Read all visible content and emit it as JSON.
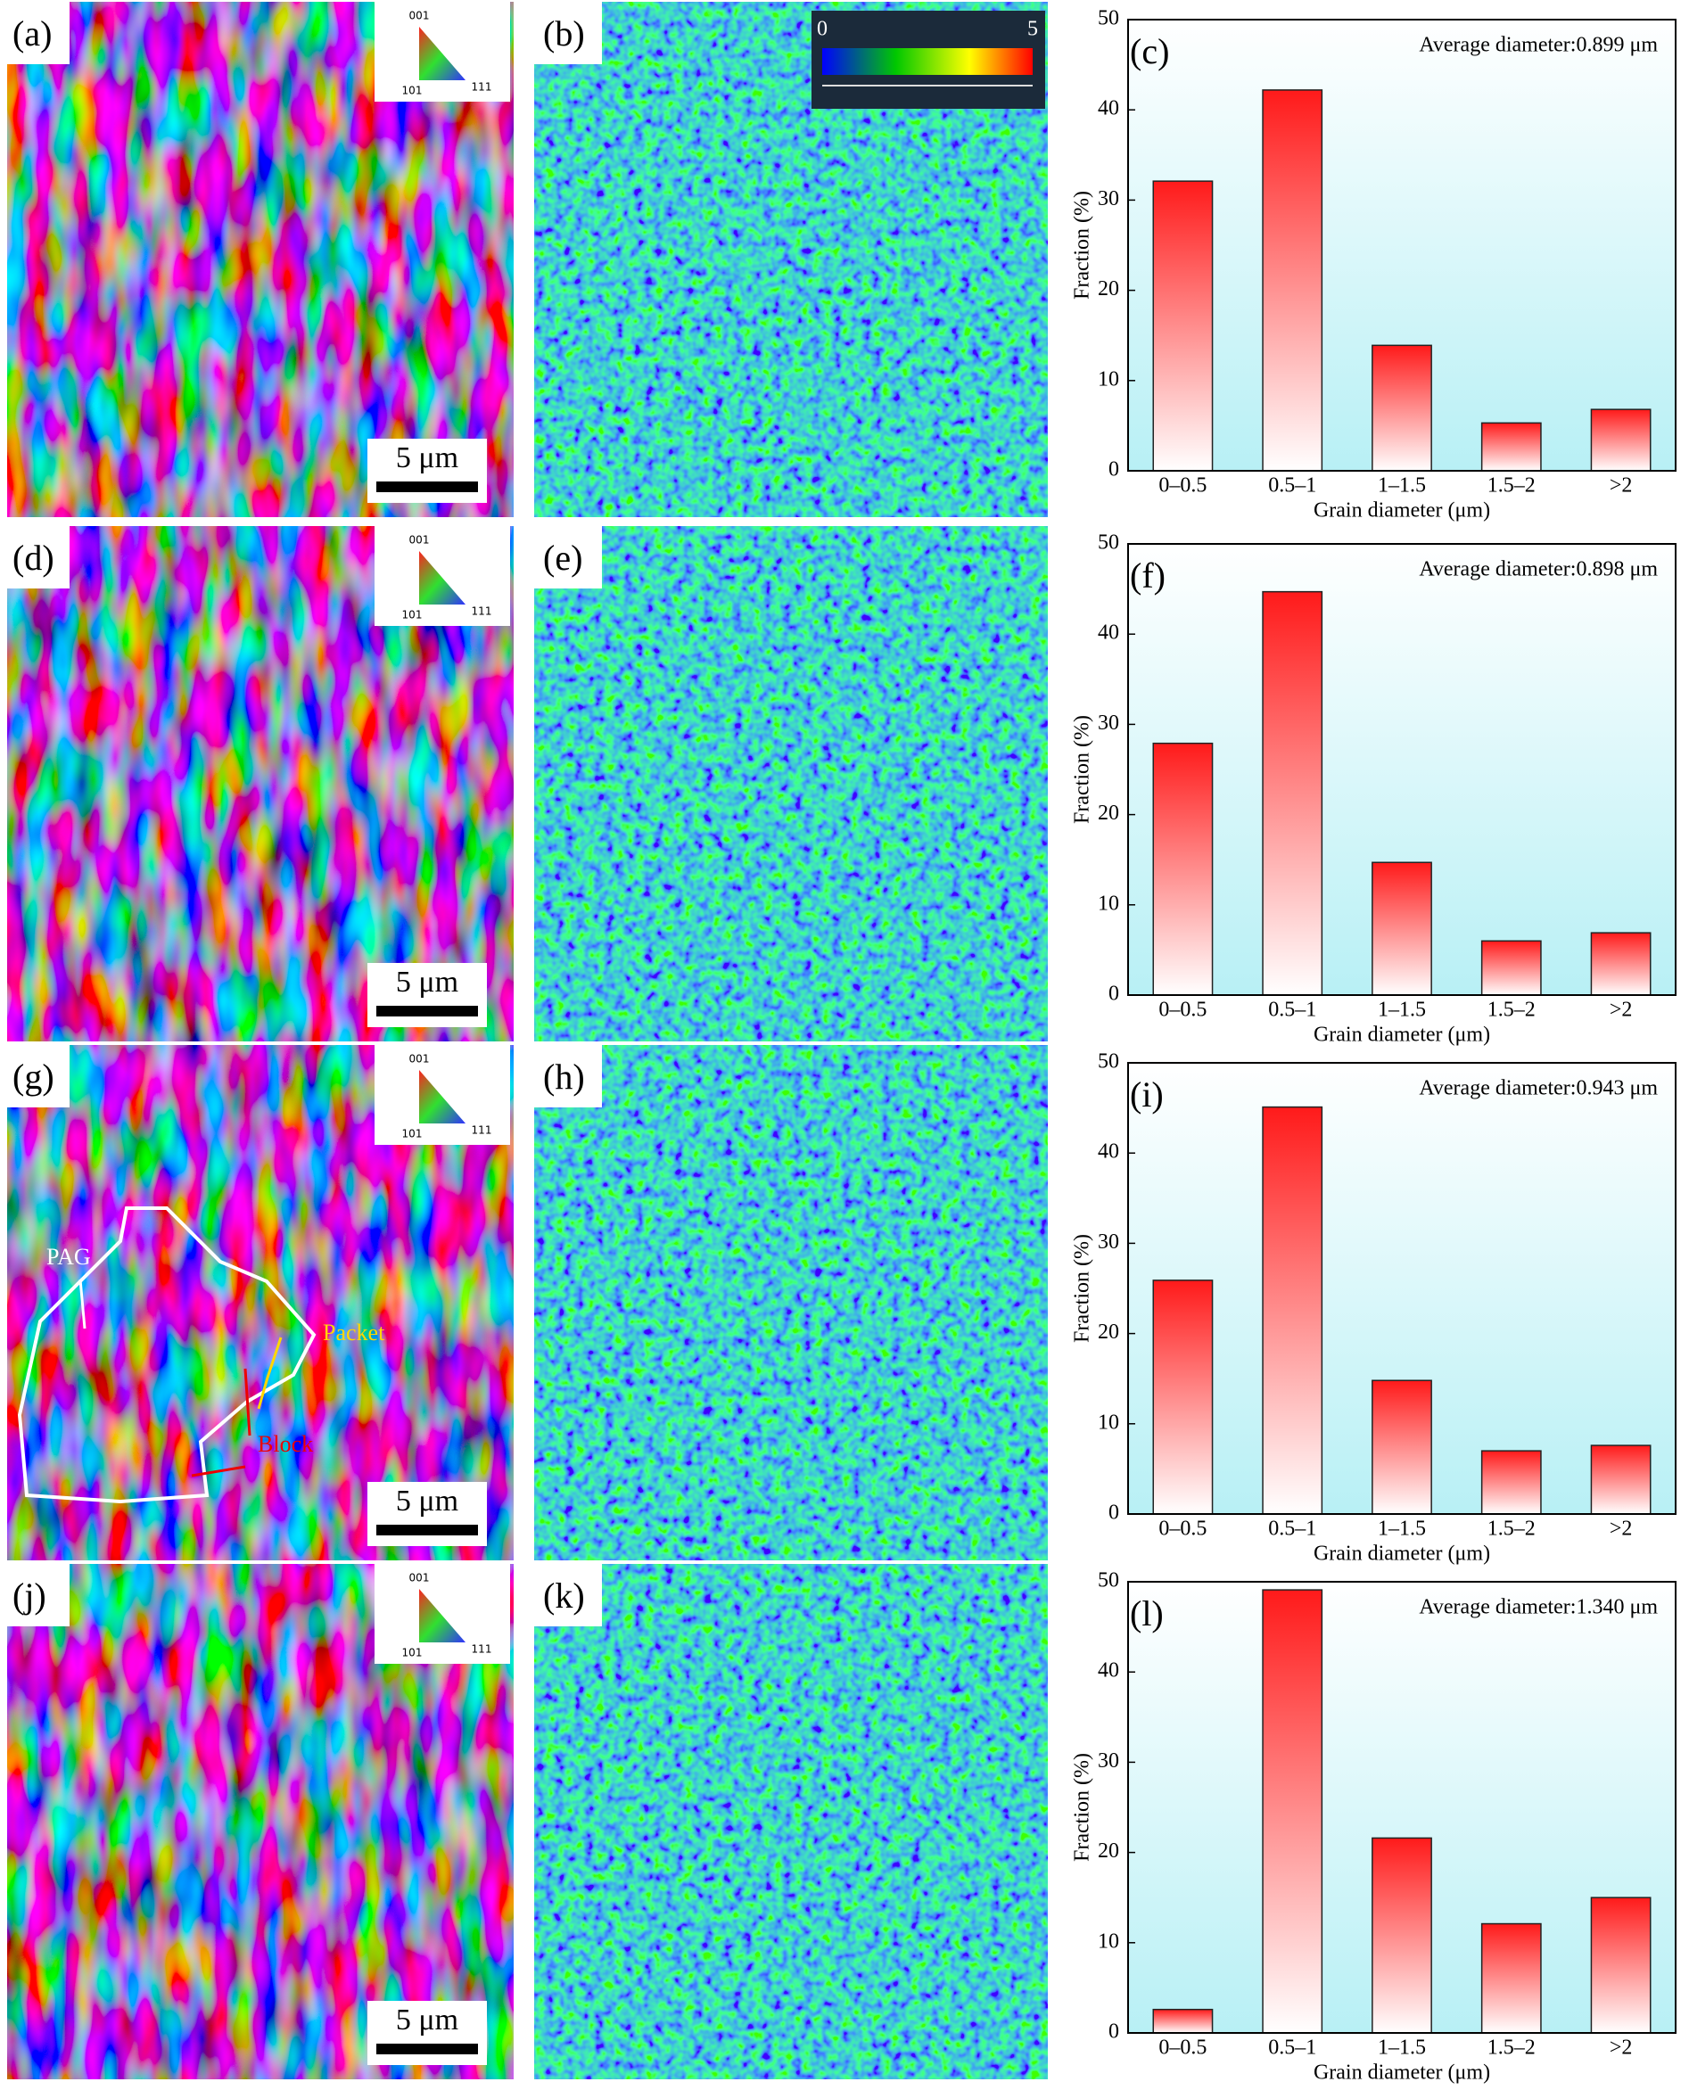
{
  "chart_data": [
    {
      "type": "bar",
      "panel": "(c)",
      "annotation": "Average diameter:0.899 μm",
      "xlabel": "Grain diameter (μm)",
      "ylabel": "Fraction (%)",
      "categories": [
        "0–0.5",
        "0.5–1",
        "1–1.5",
        "1.5–2",
        ">2"
      ],
      "values": [
        32.1,
        42.2,
        13.9,
        5.3,
        6.8
      ],
      "color": "#ff1a1a",
      "ylim": [
        0,
        50
      ],
      "yticks": [
        0,
        10,
        20,
        30,
        40,
        50
      ]
    },
    {
      "type": "bar",
      "panel": "(f)",
      "annotation": "Average diameter:0.898 μm",
      "xlabel": "Grain diameter (μm)",
      "ylabel": "Fraction (%)",
      "categories": [
        "0–0.5",
        "0.5–1",
        "1–1.5",
        "1.5–2",
        ">2"
      ],
      "values": [
        27.9,
        44.7,
        14.7,
        6.0,
        6.9
      ],
      "color": "#ff1a1a",
      "ylim": [
        0,
        50
      ],
      "yticks": [
        0,
        10,
        20,
        30,
        40,
        50
      ]
    },
    {
      "type": "bar",
      "panel": "(i)",
      "annotation": "Average diameter:0.943 μm",
      "xlabel": "Grain diameter (μm)",
      "ylabel": "Fraction (%)",
      "categories": [
        "0–0.5",
        "0.5–1",
        "1–1.5",
        "1.5–2",
        ">2"
      ],
      "values": [
        25.9,
        45.1,
        14.8,
        7.0,
        7.6
      ],
      "color": "#ff1a1a",
      "ylim": [
        0,
        50
      ],
      "yticks": [
        0,
        10,
        20,
        30,
        40,
        50
      ]
    },
    {
      "type": "bar",
      "panel": "(l)",
      "annotation": "Average diameter:1.340 μm",
      "xlabel": "Grain diameter (μm)",
      "ylabel": "Fraction (%)",
      "categories": [
        "0–0.5",
        "0.5–1",
        "1–1.5",
        "1.5–2",
        ">2"
      ],
      "values": [
        2.6,
        49.1,
        21.6,
        12.1,
        15.0
      ],
      "color": "#ff1a1a",
      "ylim": [
        0,
        50
      ],
      "yticks": [
        0,
        10,
        20,
        30,
        40,
        50
      ]
    }
  ],
  "maps": [
    {
      "ipf_panel": "(a)",
      "kam_panel": "(b)",
      "scale_bar": "5 μm",
      "ipf_legend": [
        "001",
        "101",
        "111"
      ]
    },
    {
      "ipf_panel": "(d)",
      "kam_panel": "(e)",
      "scale_bar": "5 μm",
      "ipf_legend": [
        "001",
        "101",
        "111"
      ]
    },
    {
      "ipf_panel": "(g)",
      "kam_panel": "(h)",
      "scale_bar": "5 μm",
      "ipf_legend": [
        "001",
        "101",
        "111"
      ]
    },
    {
      "ipf_panel": "(j)",
      "kam_panel": "(k)",
      "scale_bar": "5 μm",
      "ipf_legend": [
        "001",
        "101",
        "111"
      ]
    }
  ],
  "kam_colorbar": {
    "ticks": [
      0,
      5
    ]
  },
  "annotations": {
    "pag": "PAG",
    "packet": "Packet",
    "block": "Block"
  }
}
